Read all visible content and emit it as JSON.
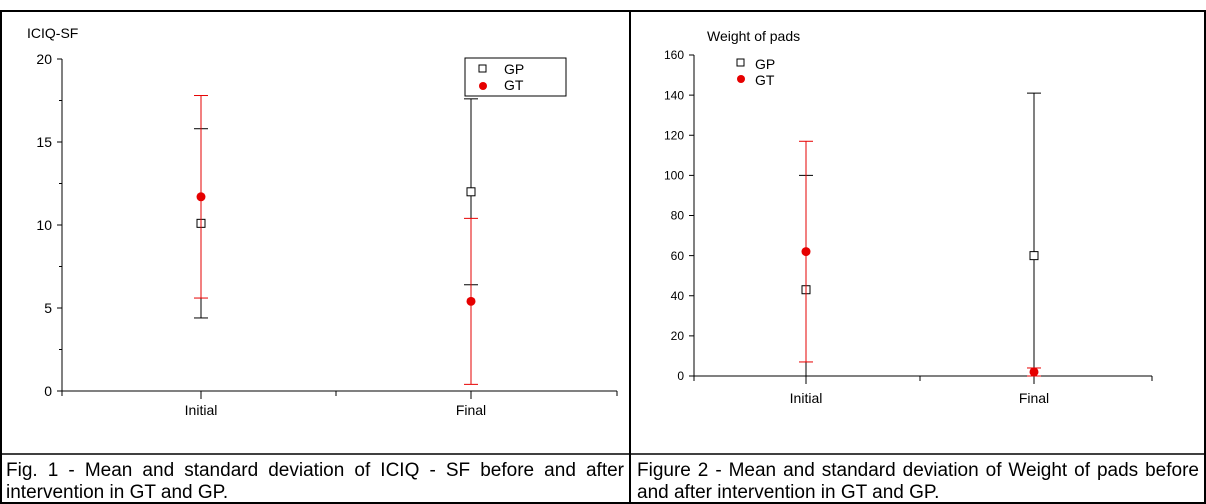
{
  "colors": {
    "gp": "#000000",
    "gt": "#e60000"
  },
  "chart_data": [
    {
      "type": "errorbar",
      "title": "ICIQ-SF",
      "categories": [
        "Initial",
        "Final"
      ],
      "ylim": [
        0,
        20
      ],
      "yticks": [
        0,
        5,
        10,
        15,
        20
      ],
      "legend_position": "top-right (boxed)",
      "series": [
        {
          "name": "GP",
          "marker": "open-square",
          "color": "#000000",
          "mean": [
            10.1,
            12.0
          ],
          "sd": [
            5.7,
            5.6
          ]
        },
        {
          "name": "GT",
          "marker": "filled-circle",
          "color": "#e60000",
          "mean": [
            11.7,
            5.4
          ],
          "sd": [
            6.1,
            5.0
          ]
        }
      ],
      "caption": "Fig. 1 - Mean and standard deviation of ICIQ - SF before and after intervention in GT and GP."
    },
    {
      "type": "errorbar",
      "title": "Weight of pads",
      "categories": [
        "Initial",
        "Final"
      ],
      "ylim": [
        0,
        160
      ],
      "yticks": [
        0,
        20,
        40,
        60,
        80,
        100,
        120,
        140,
        160
      ],
      "legend_position": "top-left",
      "series": [
        {
          "name": "GP",
          "marker": "open-square",
          "color": "#000000",
          "mean": [
            43,
            60
          ],
          "sd": [
            57,
            81
          ]
        },
        {
          "name": "GT",
          "marker": "filled-circle",
          "color": "#e60000",
          "mean": [
            62,
            2
          ],
          "sd": [
            55,
            2
          ]
        }
      ],
      "caption": "Figure 2 - Mean and standard deviation of Weight of pads before and after intervention in GT and GP."
    }
  ]
}
